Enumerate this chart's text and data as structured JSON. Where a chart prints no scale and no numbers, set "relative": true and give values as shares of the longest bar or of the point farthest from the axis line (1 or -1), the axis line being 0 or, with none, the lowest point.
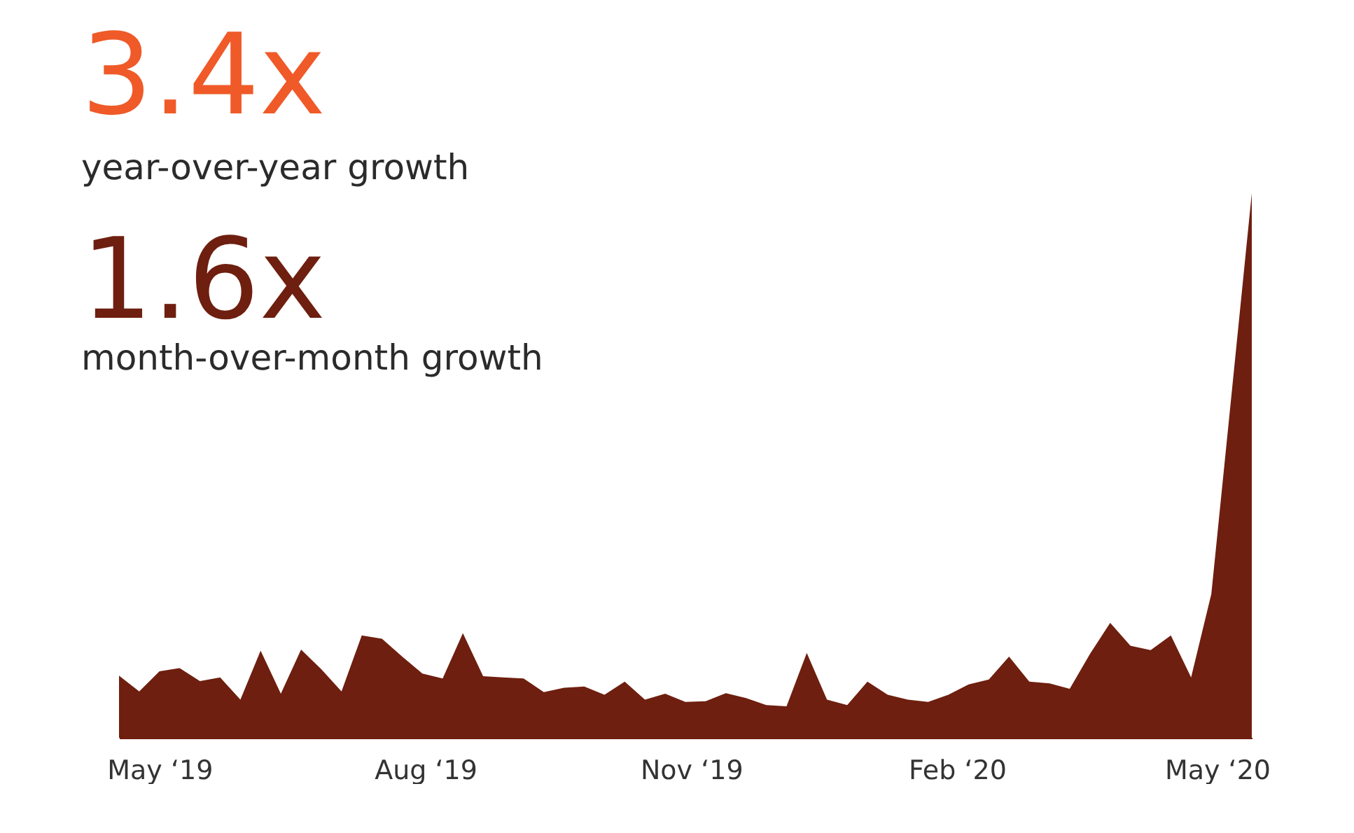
{
  "chart_data": {
    "type": "area",
    "relative": true,
    "annotations": [
      "3.4x",
      "year-over-year growth",
      "1.6x",
      "month-over-month growth"
    ],
    "x": [
      "2019-04-17",
      "2019-04-24",
      "2019-05-01",
      "2019-05-08",
      "2019-05-15",
      "2019-05-22",
      "2019-05-29",
      "2019-06-05",
      "2019-06-12",
      "2019-06-19",
      "2019-06-26",
      "2019-07-03",
      "2019-07-10",
      "2019-07-17",
      "2019-07-24",
      "2019-07-31",
      "2019-08-07",
      "2019-08-14",
      "2019-08-21",
      "2019-08-28",
      "2019-09-04",
      "2019-09-11",
      "2019-09-18",
      "2019-09-25",
      "2019-10-02",
      "2019-10-09",
      "2019-10-16",
      "2019-10-23",
      "2019-10-30",
      "2019-11-06",
      "2019-11-13",
      "2019-11-20",
      "2019-11-27",
      "2019-12-04",
      "2019-12-11",
      "2019-12-18",
      "2019-12-25",
      "2020-01-01",
      "2020-01-08",
      "2020-01-15",
      "2020-01-22",
      "2020-01-29",
      "2020-02-05",
      "2020-02-12",
      "2020-02-19",
      "2020-02-26",
      "2020-03-04",
      "2020-03-11",
      "2020-03-18",
      "2020-03-25",
      "2020-04-01",
      "2020-04-08",
      "2020-04-15",
      "2020-04-22",
      "2020-04-29",
      "2020-05-06",
      "2020-05-13"
    ],
    "series": [
      {
        "color": "#6e1f0f",
        "values": [
          0.114,
          0.085,
          0.122,
          0.128,
          0.104,
          0.111,
          0.07,
          0.16,
          0.081,
          0.162,
          0.126,
          0.085,
          0.188,
          0.182,
          0.149,
          0.118,
          0.109,
          0.192,
          0.113,
          0.111,
          0.109,
          0.084,
          0.092,
          0.094,
          0.079,
          0.103,
          0.07,
          0.081,
          0.066,
          0.067,
          0.082,
          0.073,
          0.06,
          0.058,
          0.156,
          0.07,
          0.06,
          0.103,
          0.079,
          0.07,
          0.066,
          0.079,
          0.098,
          0.107,
          0.149,
          0.103,
          0.1,
          0.09,
          0.154,
          0.211,
          0.169,
          0.161,
          0.188,
          0.111,
          0.264,
          0.631,
          1
        ]
      }
    ],
    "xlim": [
      "2019-04-17",
      "2020-05-13"
    ],
    "xticks": [
      {
        "value": "2019-05-01",
        "label": "May ‘19"
      },
      {
        "value": "2019-08-01",
        "label": "Aug ‘19"
      },
      {
        "value": "2019-11-01",
        "label": "Nov ‘19"
      },
      {
        "value": "2020-02-01",
        "label": "Feb ‘20"
      },
      {
        "value": "2020-05-01",
        "label": "May ‘20"
      }
    ]
  }
}
